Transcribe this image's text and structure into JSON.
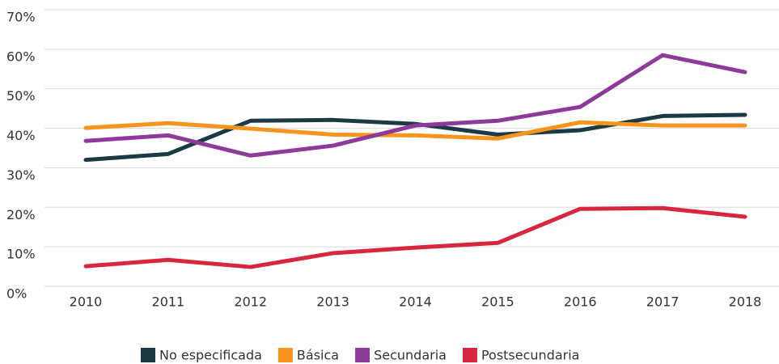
{
  "chart_data": {
    "type": "line",
    "categories": [
      "2010",
      "2011",
      "2012",
      "2013",
      "2014",
      "2015",
      "2016",
      "2017",
      "2018"
    ],
    "series": [
      {
        "name": "No especificada",
        "color": "#1b3a44",
        "values": [
          32,
          33.5,
          41.9,
          42.1,
          41.1,
          38.4,
          39.5,
          43.1,
          43.4
        ]
      },
      {
        "name": "Básica",
        "color": "#f7941d",
        "values": [
          40.1,
          41.3,
          39.9,
          38.4,
          38.2,
          37.4,
          41.5,
          40.7,
          40.7
        ]
      },
      {
        "name": "Secundaria",
        "color": "#8e3a9a",
        "values": [
          36.8,
          38.2,
          33.1,
          35.6,
          40.7,
          41.9,
          45.4,
          58.5,
          54.2
        ]
      },
      {
        "name": "Postsecundaria",
        "color": "#d7263d",
        "values": [
          5.1,
          6.7,
          4.9,
          8.4,
          9.8,
          11.0,
          19.6,
          19.8,
          17.6
        ]
      }
    ],
    "ylim": [
      0,
      70
    ],
    "yticks": [
      {
        "value": 0,
        "label": "0%"
      },
      {
        "value": 10,
        "label": "10%"
      },
      {
        "value": 20,
        "label": "20%"
      },
      {
        "value": 30,
        "label": "30%"
      },
      {
        "value": 40,
        "label": "40%"
      },
      {
        "value": 50,
        "label": "50%"
      },
      {
        "value": 60,
        "label": "60%"
      },
      {
        "value": 70,
        "label": "70%"
      }
    ],
    "grid": true,
    "legend": "bottom"
  }
}
